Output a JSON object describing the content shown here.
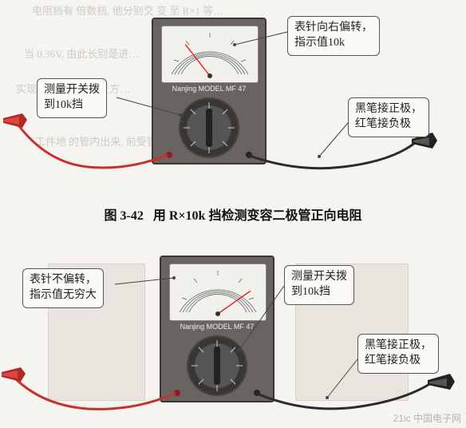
{
  "caption": {
    "prefix": "图 3-42",
    "text": "用 R×10k 挡检测变容二极管正向电阻"
  },
  "fig1": {
    "callout_top_right": "表针向右偏转，\n指示值10k",
    "callout_left": "测量开关拨\n到10k挡",
    "callout_right": "黑笔接正极，\n红笔接负极",
    "meter_brand": "Nanjing MODEL MF 47",
    "needle_deflection": "right",
    "needle_angle_deg": -38,
    "wire_colors": {
      "left": "#c9302c",
      "right": "#2b2b2b"
    }
  },
  "fig2": {
    "callout_left": "表针不偏转，\n指示值无穷大",
    "callout_top_right": "测量开关拨\n到10k挡",
    "callout_right": "黑笔接正极，\n红笔接负极",
    "meter_brand": "Nanjing MODEL MF 47",
    "needle_deflection": "none",
    "needle_angle_deg": 55,
    "wire_colors": {
      "left": "#c9302c",
      "right": "#2b2b2b"
    }
  },
  "style": {
    "bg_color": "#f5f4f0",
    "callout_border": "#555555",
    "callout_bg": "#fbfaf7",
    "meter_body": "#6a6460",
    "meter_face": "#f2f0ea",
    "needle_color": "#d22222",
    "wire_red": "#c9302c",
    "wire_black": "#2b2b2b",
    "font_caption_pt": 16,
    "font_callout_pt": 14
  },
  "watermark": "21ic 中国电子网"
}
